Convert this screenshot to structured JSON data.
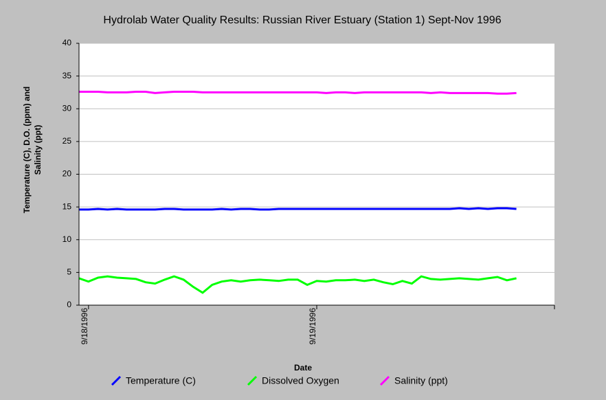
{
  "chart_data": {
    "type": "line",
    "title": "Hydrolab Water Quality Results: Russian River Estuary (Station 1) Sept-Nov 1996",
    "xlabel": "Date",
    "ylabel": [
      "Temperature (C), D.O. (ppm) and",
      "Salinity (ppt)"
    ],
    "categories": [
      null,
      "9/18/1996",
      null,
      null,
      null,
      null,
      null,
      null,
      null,
      null,
      null,
      null,
      null,
      null,
      null,
      null,
      null,
      null,
      null,
      null,
      null,
      null,
      null,
      null,
      null,
      "9/19/1996",
      null,
      null,
      null,
      null,
      null,
      null,
      null,
      null,
      null,
      null,
      null,
      null,
      null,
      null,
      null,
      null,
      null,
      null,
      null,
      null,
      null,
      null,
      null,
      null,
      null
    ],
    "ylim": [
      0,
      40
    ],
    "yticks": [
      0,
      5,
      10,
      15,
      20,
      25,
      30,
      35,
      40
    ],
    "grid": true,
    "series": [
      {
        "name": "Temperature (C)",
        "color": "#0000ff",
        "values": [
          14.6,
          14.6,
          14.7,
          14.6,
          14.7,
          14.6,
          14.6,
          14.6,
          14.6,
          14.7,
          14.7,
          14.6,
          14.6,
          14.6,
          14.6,
          14.7,
          14.6,
          14.7,
          14.7,
          14.6,
          14.6,
          14.7,
          14.7,
          14.7,
          14.7,
          14.7,
          14.7,
          14.7,
          14.7,
          14.7,
          14.7,
          14.7,
          14.7,
          14.7,
          14.7,
          14.7,
          14.7,
          14.7,
          14.7,
          14.7,
          14.8,
          14.7,
          14.8,
          14.7,
          14.8,
          14.8,
          14.7,
          null,
          null,
          null,
          null
        ]
      },
      {
        "name": "Dissolved Oxygen",
        "color": "#00ff00",
        "values": [
          4.1,
          3.6,
          4.2,
          4.4,
          4.2,
          4.1,
          4.0,
          3.5,
          3.3,
          3.9,
          4.4,
          3.9,
          2.8,
          1.9,
          3.1,
          3.6,
          3.8,
          3.6,
          3.8,
          3.9,
          3.8,
          3.7,
          3.9,
          3.9,
          3.1,
          3.7,
          3.6,
          3.8,
          3.8,
          3.9,
          3.7,
          3.9,
          3.5,
          3.2,
          3.7,
          3.3,
          4.4,
          4.0,
          3.9,
          4.0,
          4.1,
          4.0,
          3.9,
          4.1,
          4.3,
          3.8,
          4.1,
          null,
          null,
          null,
          null
        ]
      },
      {
        "name": "Salinity (ppt)",
        "color": "#ff00ff",
        "values": [
          32.6,
          32.6,
          32.6,
          32.5,
          32.5,
          32.5,
          32.6,
          32.6,
          32.4,
          32.5,
          32.6,
          32.6,
          32.6,
          32.5,
          32.5,
          32.5,
          32.5,
          32.5,
          32.5,
          32.5,
          32.5,
          32.5,
          32.5,
          32.5,
          32.5,
          32.5,
          32.4,
          32.5,
          32.5,
          32.4,
          32.5,
          32.5,
          32.5,
          32.5,
          32.5,
          32.5,
          32.5,
          32.4,
          32.5,
          32.4,
          32.4,
          32.4,
          32.4,
          32.4,
          32.3,
          32.3,
          32.4,
          null,
          null,
          null,
          null
        ]
      }
    ]
  }
}
